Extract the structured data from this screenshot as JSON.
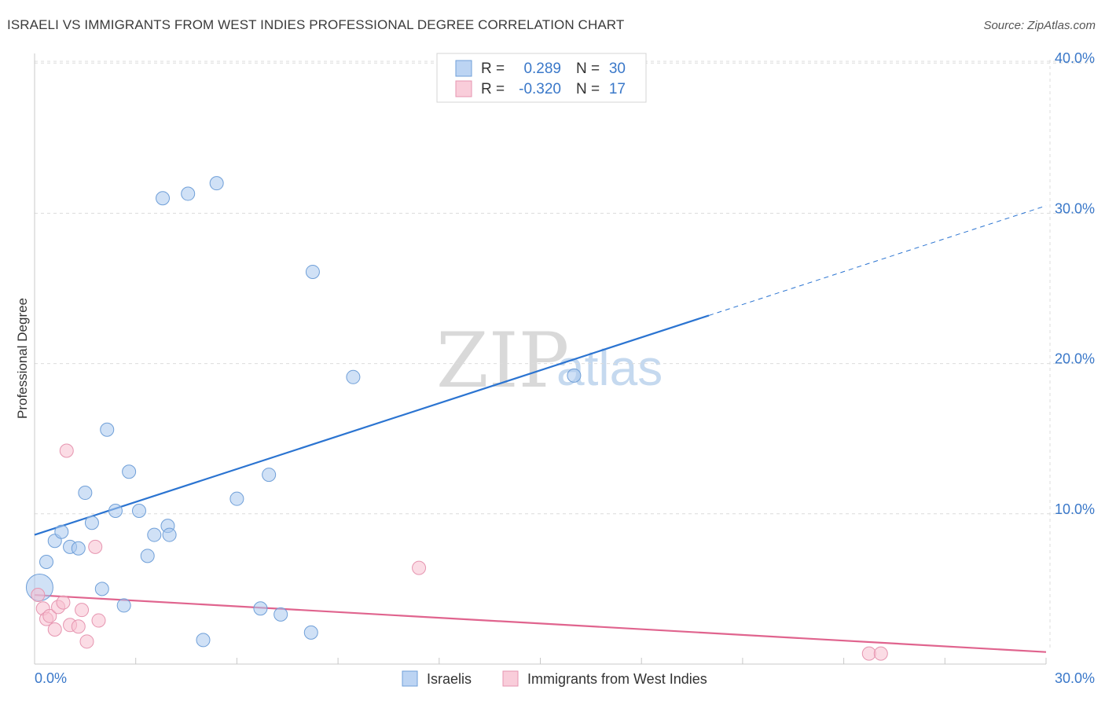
{
  "title": "ISRAELI VS IMMIGRANTS FROM WEST INDIES PROFESSIONAL DEGREE CORRELATION CHART",
  "source": "Source: ZipAtlas.com",
  "watermark": {
    "zip": "ZIP",
    "atlas": "atlas"
  },
  "legend": {
    "rows": [
      {
        "r_label": "R =",
        "r_value": "0.289",
        "n_label": "N =",
        "n_value": "30"
      },
      {
        "r_label": "R =",
        "r_value": "-0.320",
        "n_label": "N =",
        "n_value": "17"
      }
    ]
  },
  "chart_data": {
    "type": "scatter",
    "title": "ISRAELI VS IMMIGRANTS FROM WEST INDIES PROFESSIONAL DEGREE CORRELATION CHART",
    "xlabel": "",
    "ylabel": "Professional Degree",
    "xlim": [
      0,
      30
    ],
    "ylim": [
      0,
      41
    ],
    "x_ticks": [
      "0.0%",
      "30.0%"
    ],
    "y_ticks": [
      {
        "value": 10,
        "label": "10.0%"
      },
      {
        "value": 20,
        "label": "20.0%"
      },
      {
        "value": 30,
        "label": "30.0%"
      },
      {
        "value": 40,
        "label": "40.0%"
      }
    ],
    "grid": true,
    "legend_position": "top-center",
    "series": [
      {
        "name": "Israelis",
        "color": "#a9c8ee",
        "stroke": "#6f9fd8",
        "line_color": "#2b74d1",
        "trend": {
          "x0": 0,
          "y0": 8.6,
          "x1": 20.0,
          "y1": 23.2,
          "dash_to_x": 30.0,
          "dash_to_y": 30.5
        },
        "points": [
          {
            "x": 0.15,
            "y": 5.1,
            "big": true
          },
          {
            "x": 0.35,
            "y": 6.8
          },
          {
            "x": 0.6,
            "y": 8.2
          },
          {
            "x": 0.8,
            "y": 8.8
          },
          {
            "x": 1.05,
            "y": 7.8
          },
          {
            "x": 1.3,
            "y": 7.7
          },
          {
            "x": 1.5,
            "y": 11.4
          },
          {
            "x": 1.7,
            "y": 9.4
          },
          {
            "x": 2.0,
            "y": 5.0
          },
          {
            "x": 2.15,
            "y": 15.6
          },
          {
            "x": 2.4,
            "y": 10.2
          },
          {
            "x": 2.65,
            "y": 3.9
          },
          {
            "x": 2.8,
            "y": 12.8
          },
          {
            "x": 3.1,
            "y": 10.2
          },
          {
            "x": 3.35,
            "y": 7.2
          },
          {
            "x": 3.55,
            "y": 8.6
          },
          {
            "x": 3.8,
            "y": 31.0
          },
          {
            "x": 3.95,
            "y": 9.2
          },
          {
            "x": 4.0,
            "y": 8.6
          },
          {
            "x": 4.55,
            "y": 31.3
          },
          {
            "x": 5.0,
            "y": 1.6
          },
          {
            "x": 5.4,
            "y": 32.0
          },
          {
            "x": 6.0,
            "y": 11.0
          },
          {
            "x": 6.7,
            "y": 3.7
          },
          {
            "x": 6.95,
            "y": 12.6
          },
          {
            "x": 7.3,
            "y": 3.3
          },
          {
            "x": 8.2,
            "y": 2.1
          },
          {
            "x": 8.25,
            "y": 26.1
          },
          {
            "x": 9.45,
            "y": 19.1
          },
          {
            "x": 16.0,
            "y": 19.2
          }
        ]
      },
      {
        "name": "Immigrants from West Indies",
        "color": "#f7bfd0",
        "stroke": "#e695b0",
        "line_color": "#e0648e",
        "trend": {
          "x0": 0,
          "y0": 4.6,
          "x1": 30.0,
          "y1": 0.8
        },
        "points": [
          {
            "x": 0.1,
            "y": 4.6
          },
          {
            "x": 0.25,
            "y": 3.7
          },
          {
            "x": 0.35,
            "y": 3.0
          },
          {
            "x": 0.45,
            "y": 3.2
          },
          {
            "x": 0.6,
            "y": 2.3
          },
          {
            "x": 0.7,
            "y": 3.8
          },
          {
            "x": 0.85,
            "y": 4.1
          },
          {
            "x": 0.95,
            "y": 14.2
          },
          {
            "x": 1.05,
            "y": 2.6
          },
          {
            "x": 1.3,
            "y": 2.5
          },
          {
            "x": 1.4,
            "y": 3.6
          },
          {
            "x": 1.55,
            "y": 1.5
          },
          {
            "x": 1.8,
            "y": 7.8
          },
          {
            "x": 1.9,
            "y": 2.9
          },
          {
            "x": 11.4,
            "y": 6.4
          },
          {
            "x": 24.75,
            "y": 0.7
          },
          {
            "x": 25.1,
            "y": 0.7
          }
        ]
      }
    ]
  }
}
